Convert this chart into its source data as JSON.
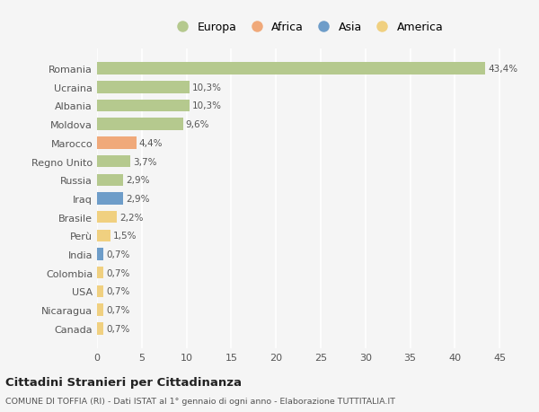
{
  "categories": [
    "Romania",
    "Ucraina",
    "Albania",
    "Moldova",
    "Marocco",
    "Regno Unito",
    "Russia",
    "Iraq",
    "Brasile",
    "Perù",
    "India",
    "Colombia",
    "USA",
    "Nicaragua",
    "Canada"
  ],
  "values": [
    43.4,
    10.3,
    10.3,
    9.6,
    4.4,
    3.7,
    2.9,
    2.9,
    2.2,
    1.5,
    0.7,
    0.7,
    0.7,
    0.7,
    0.7
  ],
  "labels": [
    "43,4%",
    "10,3%",
    "10,3%",
    "9,6%",
    "4,4%",
    "3,7%",
    "2,9%",
    "2,9%",
    "2,2%",
    "1,5%",
    "0,7%",
    "0,7%",
    "0,7%",
    "0,7%",
    "0,7%"
  ],
  "colors": [
    "#b5c98e",
    "#b5c98e",
    "#b5c98e",
    "#b5c98e",
    "#f0a97a",
    "#b5c98e",
    "#b5c98e",
    "#6e9dc9",
    "#f0d080",
    "#f0d080",
    "#6e9dc9",
    "#f0d080",
    "#f0d080",
    "#f0d080",
    "#f0d080"
  ],
  "legend_labels": [
    "Europa",
    "Africa",
    "Asia",
    "America"
  ],
  "legend_colors": [
    "#b5c98e",
    "#f0a97a",
    "#6e9dc9",
    "#f0d080"
  ],
  "title_bold": "Cittadini Stranieri per Cittadinanza",
  "title_sub": "COMUNE DI TOFFIA (RI) - Dati ISTAT al 1° gennaio di ogni anno - Elaborazione TUTTITALIA.IT",
  "xlim": [
    0,
    47
  ],
  "xticks": [
    0,
    5,
    10,
    15,
    20,
    25,
    30,
    35,
    40,
    45
  ],
  "background_color": "#f5f5f5",
  "grid_color": "#ffffff",
  "bar_height": 0.65
}
